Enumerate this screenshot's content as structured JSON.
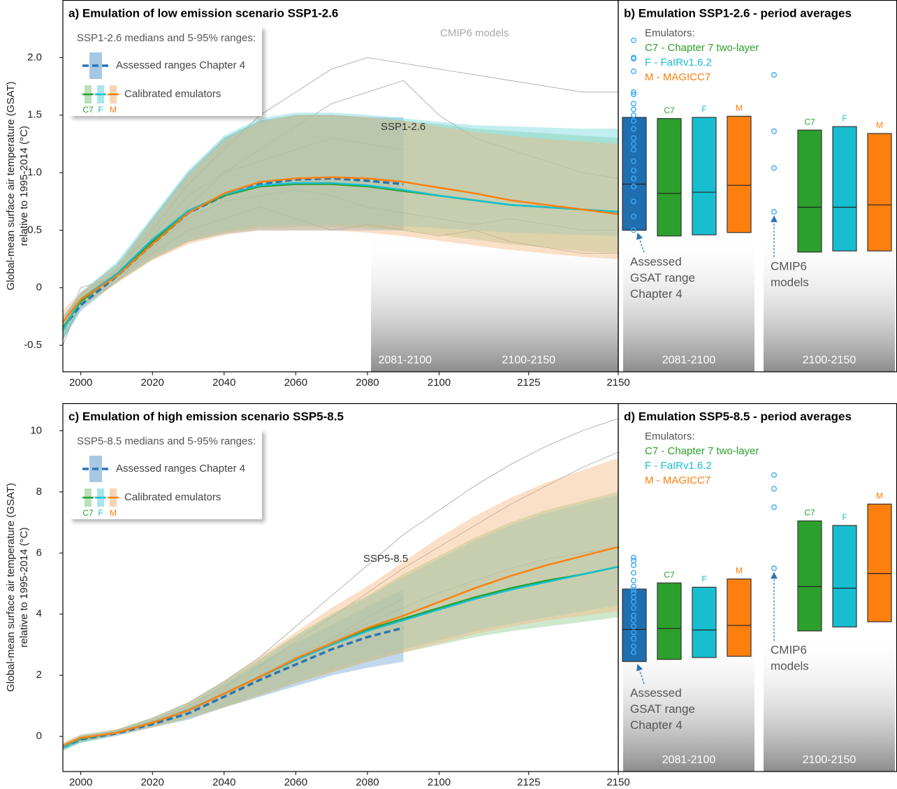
{
  "chart_data": [
    {
      "type": "line",
      "title": "a) Emulation of low emission scenario SSP1-2.6",
      "ylabel": [
        "Global-mean surface air temperature (GSAT)",
        "relative to 1995-2014 (°C)"
      ],
      "annotation": "SSP1-2.6",
      "xlim": [
        1995,
        2150
      ],
      "xticks": [
        2000,
        2020,
        2040,
        2060,
        2080,
        2100,
        2125,
        2150
      ],
      "ylim": [
        -0.73,
        2.5
      ],
      "yticks": [
        -0.5,
        0,
        0.5,
        {
          "value": 1,
          "label": "1.0"
        },
        1.5,
        {
          "value": 2,
          "label": "2.0"
        }
      ],
      "periods": [
        {
          "label": "2081-2100",
          "range": [
            2081,
            2100
          ]
        },
        {
          "label": "2100-2150",
          "range": [
            2100,
            2150
          ]
        }
      ],
      "legend": {
        "title": "SSP1-2.6 medians and 5-95% ranges:",
        "emulators_label": "Calibrated emulators",
        "position": "upper left"
      },
      "x": [
        1995,
        2000,
        2010,
        2020,
        2030,
        2040,
        2050,
        2060,
        2070,
        2080,
        2090,
        2100,
        2110,
        2120,
        2130,
        2140,
        2150
      ],
      "models": {
        "label": "CMIP6 models",
        "color": "#8a8a8a",
        "lines": [
          [
            -0.4,
            -0.1,
            0.15,
            0.5,
            0.9,
            1.2,
            1.5,
            1.7,
            1.9,
            2.0,
            1.95,
            1.9,
            1.85,
            1.8,
            1.75,
            1.7,
            1.7
          ],
          [
            -0.3,
            -0.05,
            0.2,
            0.45,
            0.8,
            1.0,
            1.1,
            1.2,
            1.3,
            1.25,
            1.2,
            null,
            null,
            null,
            null,
            null,
            null
          ],
          [
            -0.45,
            -0.15,
            0.05,
            0.35,
            0.6,
            0.75,
            0.8,
            0.85,
            0.8,
            0.7,
            0.65,
            0.6,
            0.55,
            0.6,
            0.55,
            0.5,
            0.5
          ],
          [
            -0.35,
            0,
            0.1,
            0.4,
            0.7,
            1.0,
            1.2,
            1.4,
            1.6,
            1.7,
            1.8,
            1.5,
            1.3,
            1.2,
            1.1,
            1.0,
            0.95
          ],
          [
            -0.5,
            -0.1,
            0.1,
            0.3,
            0.5,
            0.6,
            0.7,
            0.6,
            0.5,
            0.55,
            0.5,
            0.45,
            0.5,
            0.4,
            0.35,
            0.3,
            0.3
          ]
        ]
      },
      "series": [
        {
          "name": "Assessed ranges Chapter 4",
          "color": "#2a75b3",
          "band_color": "#6aa3d4",
          "dashed": true,
          "values": [
            -0.35,
            -0.15,
            0.1,
            0.38,
            0.65,
            0.8,
            0.9,
            0.94,
            0.95,
            0.93,
            0.9,
            null,
            null,
            null,
            null,
            null,
            null
          ],
          "lower": [
            -0.45,
            -0.2,
            0.05,
            0.25,
            0.4,
            0.47,
            0.5,
            0.5,
            0.5,
            0.5,
            0.5,
            null,
            null,
            null,
            null,
            null,
            null
          ],
          "upper": [
            -0.25,
            -0.05,
            0.18,
            0.6,
            1.0,
            1.3,
            1.45,
            1.5,
            1.5,
            1.48,
            1.48,
            null,
            null,
            null,
            null,
            null,
            null
          ]
        },
        {
          "name": "C7",
          "color": "#2ca02c",
          "band_color": "#8cc98c",
          "values": [
            -0.35,
            -0.12,
            0.12,
            0.4,
            0.66,
            0.8,
            0.88,
            0.9,
            0.9,
            0.88,
            0.84,
            0.8,
            0.76,
            0.72,
            0.7,
            0.68,
            0.66
          ],
          "lower": [
            -0.45,
            -0.18,
            0.05,
            0.25,
            0.4,
            0.48,
            0.52,
            0.53,
            0.53,
            0.52,
            0.5,
            0.46,
            0.42,
            0.38,
            0.35,
            0.32,
            0.3
          ],
          "upper": [
            -0.25,
            -0.06,
            0.2,
            0.6,
            1.0,
            1.3,
            1.45,
            1.5,
            1.5,
            1.48,
            1.45,
            1.42,
            1.38,
            1.36,
            1.34,
            1.32,
            1.3
          ]
        },
        {
          "name": "F",
          "color": "#17becf",
          "band_color": "#6fd6e0",
          "values": [
            -0.37,
            -0.1,
            0.12,
            0.42,
            0.67,
            0.81,
            0.89,
            0.91,
            0.91,
            0.89,
            0.85,
            0.8,
            0.76,
            0.72,
            0.7,
            0.68,
            0.66
          ],
          "lower": [
            -0.45,
            -0.17,
            0.06,
            0.27,
            0.42,
            0.5,
            0.54,
            0.55,
            0.55,
            0.55,
            0.54,
            0.52,
            0.5,
            0.48,
            0.47,
            0.46,
            0.45
          ],
          "upper": [
            -0.27,
            -0.04,
            0.22,
            0.62,
            1.02,
            1.32,
            1.47,
            1.52,
            1.52,
            1.5,
            1.47,
            1.44,
            1.41,
            1.4,
            1.39,
            1.38,
            1.38
          ]
        },
        {
          "name": "M",
          "color": "#ff7f0e",
          "band_color": "#f5b77d",
          "values": [
            -0.3,
            -0.1,
            0.1,
            0.38,
            0.65,
            0.82,
            0.92,
            0.95,
            0.96,
            0.95,
            0.92,
            0.87,
            0.82,
            0.76,
            0.72,
            0.68,
            0.64
          ],
          "lower": [
            -0.4,
            -0.16,
            0.04,
            0.24,
            0.38,
            0.46,
            0.5,
            0.5,
            0.5,
            0.48,
            0.45,
            0.41,
            0.37,
            0.33,
            0.3,
            0.27,
            0.25
          ],
          "upper": [
            -0.2,
            -0.04,
            0.18,
            0.58,
            0.98,
            1.28,
            1.44,
            1.5,
            1.5,
            1.48,
            1.45,
            1.4,
            1.35,
            1.32,
            1.29,
            1.27,
            1.25
          ]
        }
      ]
    },
    {
      "type": "box",
      "title": "b) Emulation SSP1-2.6 - period averages",
      "ylim": [
        -0.73,
        2.5
      ],
      "emulators": {
        "title": "Emulators:",
        "items": [
          {
            "text": "C7 - Chapter 7 two-layer",
            "color": "#2ca02c"
          },
          {
            "text": "F - FaIRv1.6.2",
            "color": "#17becf"
          },
          {
            "text": "M - MAGICC7",
            "color": "#ff7f0e"
          }
        ]
      },
      "assessed_note": [
        "Assessed",
        "GSAT range",
        "Chapter 4"
      ],
      "models_note": [
        "CMIP6",
        "models"
      ],
      "models_color": "#3fa9f5",
      "groups": [
        {
          "label": "2081-2100",
          "models": [
            2.15,
            2.0,
            1.99,
            1.88,
            1.7,
            1.68,
            1.6,
            1.55,
            1.5,
            1.45,
            1.38,
            1.3,
            1.25,
            1.2,
            1.1,
            1.02,
            0.95,
            0.88,
            0.75,
            0.62,
            0.5
          ],
          "boxes": [
            {
              "color": "#1f6fb0",
              "low": 0.5,
              "median": 0.9,
              "high": 1.48
            },
            {
              "name": "C7",
              "color": "#2ca02c",
              "low": 0.45,
              "median": 0.82,
              "high": 1.47
            },
            {
              "name": "F",
              "color": "#17becf",
              "low": 0.46,
              "median": 0.83,
              "high": 1.48
            },
            {
              "name": "M",
              "color": "#ff7f0e",
              "low": 0.48,
              "median": 0.89,
              "high": 1.49
            }
          ]
        },
        {
          "label": "2100-2150",
          "models": [
            1.85,
            1.36,
            1.04,
            0.66
          ],
          "boxes": [
            {
              "name": "C7",
              "color": "#2ca02c",
              "low": 0.31,
              "median": 0.7,
              "high": 1.37
            },
            {
              "name": "F",
              "color": "#17becf",
              "low": 0.32,
              "median": 0.7,
              "high": 1.4
            },
            {
              "name": "M",
              "color": "#ff7f0e",
              "low": 0.32,
              "median": 0.72,
              "high": 1.34
            }
          ]
        }
      ]
    },
    {
      "type": "line",
      "title": "c) Emulation of high emission scenario SSP5-8.5",
      "ylabel": [
        "Global-mean surface air temperature (GSAT)",
        "relative to 1995-2014 (°C)"
      ],
      "annotation": "SSP5-8.5",
      "xlim": [
        1995,
        2150
      ],
      "xticks": [
        2000,
        2020,
        2040,
        2060,
        2080,
        2100,
        2125,
        2150
      ],
      "ylim": [
        -1.15,
        10.9
      ],
      "yticks": [
        0,
        2,
        4,
        6,
        8,
        10
      ],
      "legend": {
        "title": "SSP5-8.5 medians and 5-95% ranges:",
        "emulators_label": "Calibrated emulators",
        "position": "upper left"
      },
      "x": [
        1995,
        2000,
        2010,
        2020,
        2030,
        2040,
        2050,
        2060,
        2070,
        2080,
        2090,
        2100,
        2110,
        2120,
        2130,
        2140,
        2150
      ],
      "models": {
        "color": "#8a8a8a",
        "lines": [
          [
            -0.4,
            -0.1,
            0.2,
            0.6,
            1.1,
            1.8,
            2.6,
            3.6,
            4.6,
            5.6,
            6.6,
            7.4,
            8.2,
            8.9,
            9.5,
            10.0,
            10.4
          ],
          [
            -0.3,
            -0.05,
            0.15,
            0.5,
            1.0,
            1.6,
            2.3,
            3.1,
            3.9,
            4.7,
            5.5,
            6.2,
            6.9,
            7.6,
            8.2,
            8.8,
            9.3
          ],
          [
            -0.35,
            0,
            0.1,
            0.45,
            0.9,
            1.4,
            2.0,
            2.6,
            3.2,
            3.9,
            4.5,
            null,
            null,
            null,
            null,
            null,
            null
          ],
          [
            -0.45,
            -0.1,
            0.1,
            0.4,
            0.8,
            1.3,
            1.9,
            2.5,
            3.1,
            3.7,
            4.2,
            4.7,
            5.1,
            5.5,
            5.8,
            6.0,
            6.2
          ]
        ]
      },
      "series": [
        {
          "name": "Assessed ranges Chapter 4",
          "color": "#2a75b3",
          "band_color": "#6aa3d4",
          "dashed": true,
          "values": [
            -0.35,
            -0.1,
            0.1,
            0.4,
            0.75,
            1.3,
            1.85,
            2.35,
            2.85,
            3.25,
            3.55,
            null,
            null,
            null,
            null,
            null,
            null
          ],
          "lower": [
            -0.45,
            -0.2,
            0.02,
            0.3,
            0.55,
            0.95,
            1.3,
            1.65,
            2.0,
            2.25,
            2.45,
            null,
            null,
            null,
            null,
            null,
            null
          ],
          "upper": [
            -0.25,
            0,
            0.2,
            0.55,
            1.0,
            1.7,
            2.4,
            3.05,
            3.65,
            4.25,
            4.8,
            null,
            null,
            null,
            null,
            null,
            null
          ]
        },
        {
          "name": "C7",
          "color": "#2ca02c",
          "band_color": "#8cc98c",
          "values": [
            -0.35,
            -0.08,
            0.12,
            0.45,
            0.85,
            1.4,
            1.95,
            2.5,
            3.0,
            3.5,
            3.85,
            4.2,
            4.55,
            4.85,
            5.1,
            5.3,
            5.55
          ],
          "lower": [
            -0.45,
            -0.2,
            0.05,
            0.3,
            0.6,
            0.95,
            1.35,
            1.75,
            2.1,
            2.45,
            2.75,
            3.0,
            3.25,
            3.45,
            3.6,
            3.75,
            3.9
          ],
          "upper": [
            -0.25,
            0.05,
            0.22,
            0.6,
            1.1,
            1.8,
            2.55,
            3.3,
            4.0,
            4.6,
            5.3,
            5.9,
            6.5,
            7.0,
            7.4,
            7.7,
            8.0
          ]
        },
        {
          "name": "F",
          "color": "#17becf",
          "band_color": "#6fd6e0",
          "values": [
            -0.37,
            -0.06,
            0.12,
            0.45,
            0.86,
            1.4,
            1.95,
            2.5,
            3.0,
            3.45,
            3.8,
            4.15,
            4.5,
            4.8,
            5.05,
            5.3,
            5.55
          ],
          "lower": [
            -0.45,
            -0.18,
            0.06,
            0.32,
            0.62,
            0.98,
            1.4,
            1.8,
            2.2,
            2.55,
            2.85,
            3.15,
            3.45,
            3.7,
            3.9,
            4.1,
            4.3
          ],
          "upper": [
            -0.27,
            0.04,
            0.22,
            0.6,
            1.08,
            1.78,
            2.5,
            3.25,
            3.95,
            4.55,
            5.2,
            5.8,
            6.4,
            6.9,
            7.3,
            7.6,
            7.9
          ]
        },
        {
          "name": "M",
          "color": "#ff7f0e",
          "band_color": "#f5b77d",
          "values": [
            -0.3,
            -0.05,
            0.12,
            0.45,
            0.85,
            1.4,
            1.95,
            2.55,
            3.05,
            3.55,
            3.95,
            4.4,
            4.85,
            5.25,
            5.6,
            5.9,
            6.2
          ],
          "lower": [
            -0.4,
            -0.15,
            0.05,
            0.3,
            0.6,
            0.95,
            1.35,
            1.75,
            2.1,
            2.45,
            2.75,
            3.05,
            3.35,
            3.6,
            3.8,
            3.95,
            4.1
          ],
          "upper": [
            -0.2,
            0.05,
            0.22,
            0.6,
            1.1,
            1.8,
            2.6,
            3.4,
            4.2,
            4.9,
            5.7,
            6.5,
            7.2,
            7.8,
            8.3,
            8.7,
            9.1
          ]
        }
      ]
    },
    {
      "type": "box",
      "title": "d) Emulation SSP5-8.5 - period averages",
      "ylim": [
        -1.15,
        10.9
      ],
      "emulators": {
        "title": "Emulators:",
        "items": [
          {
            "text": "C7 - Chapter 7 two-layer",
            "color": "#2ca02c"
          },
          {
            "text": "F - FaIRv1.6.2",
            "color": "#17becf"
          },
          {
            "text": "M - MAGICC7",
            "color": "#ff7f0e"
          }
        ]
      },
      "assessed_note": [
        "Assessed",
        "GSAT range",
        "Chapter 4"
      ],
      "models_note": [
        "CMIP6",
        "models"
      ],
      "models_color": "#3fa9f5",
      "groups": [
        {
          "label": "2081-2100",
          "models": [
            5.85,
            5.75,
            5.6,
            5.35,
            5.1,
            4.9,
            4.8,
            4.7,
            4.55,
            4.4,
            4.2,
            3.95,
            3.8,
            3.6,
            3.4,
            3.2,
            2.95,
            2.75
          ],
          "boxes": [
            {
              "color": "#1f6fb0",
              "low": 2.45,
              "median": 3.5,
              "high": 4.82
            },
            {
              "name": "C7",
              "color": "#2ca02c",
              "low": 2.52,
              "median": 3.53,
              "high": 5.02
            },
            {
              "name": "F",
              "color": "#17becf",
              "low": 2.58,
              "median": 3.48,
              "high": 4.88
            },
            {
              "name": "M",
              "color": "#ff7f0e",
              "low": 2.62,
              "median": 3.63,
              "high": 5.15
            }
          ]
        },
        {
          "label": "2100-2150",
          "models": [
            8.55,
            8.1,
            7.5,
            5.5
          ],
          "boxes": [
            {
              "name": "C7",
              "color": "#2ca02c",
              "low": 3.45,
              "median": 4.9,
              "high": 7.05
            },
            {
              "name": "F",
              "color": "#17becf",
              "low": 3.58,
              "median": 4.85,
              "high": 6.9
            },
            {
              "name": "M",
              "color": "#ff7f0e",
              "low": 3.75,
              "median": 5.33,
              "high": 7.6
            }
          ]
        }
      ]
    }
  ]
}
